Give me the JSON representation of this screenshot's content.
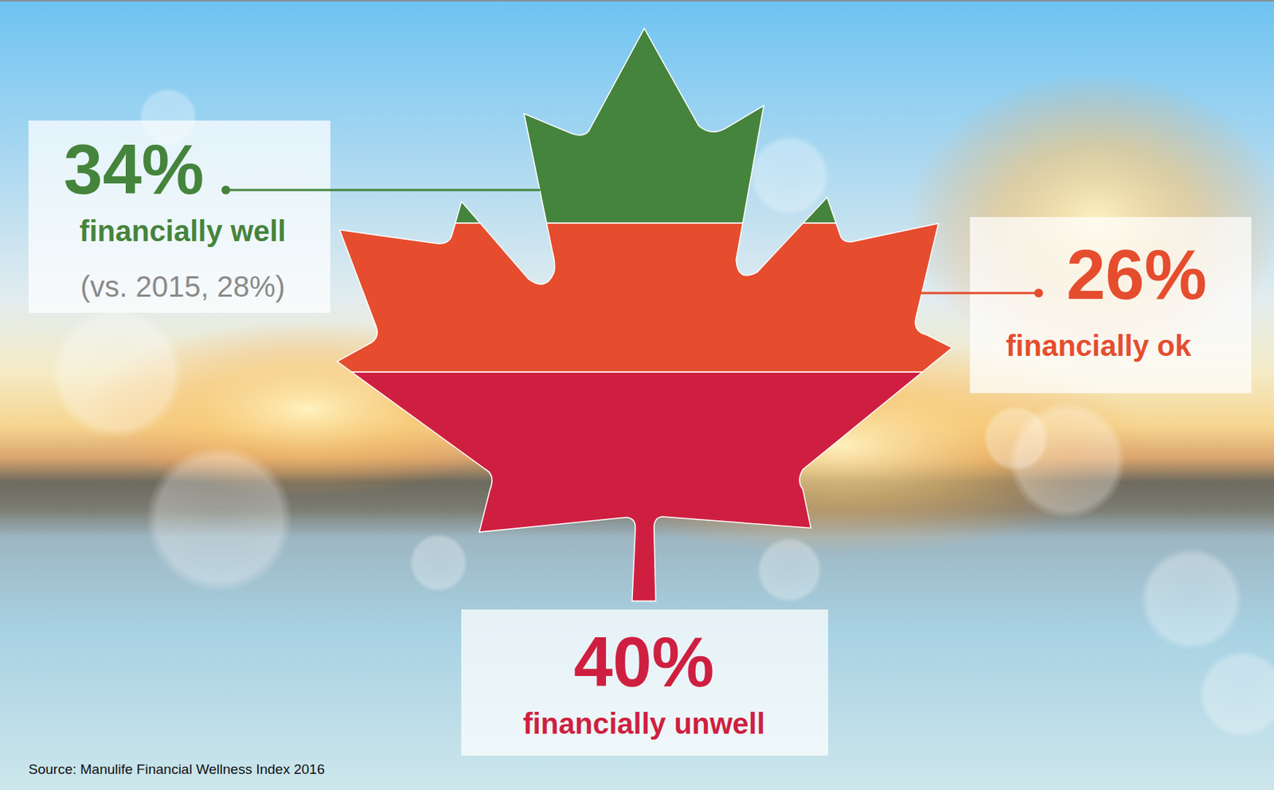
{
  "chart_data": {
    "type": "pictogram",
    "categories": [
      "financially well",
      "financially ok",
      "financially unwell"
    ],
    "values": [
      34,
      26,
      40
    ],
    "value_labels": [
      "34%",
      "26%",
      "40%"
    ],
    "colors": [
      "#45843c",
      "#e54d2e",
      "#cf1f40"
    ],
    "ylim": [
      0,
      100
    ],
    "stacked": true,
    "data_labels": true,
    "tick_labels": false,
    "annotations": [
      "(vs. 2015, 28%)"
    ],
    "source": "Source: Manulife Financial Wellness Index 2016"
  }
}
